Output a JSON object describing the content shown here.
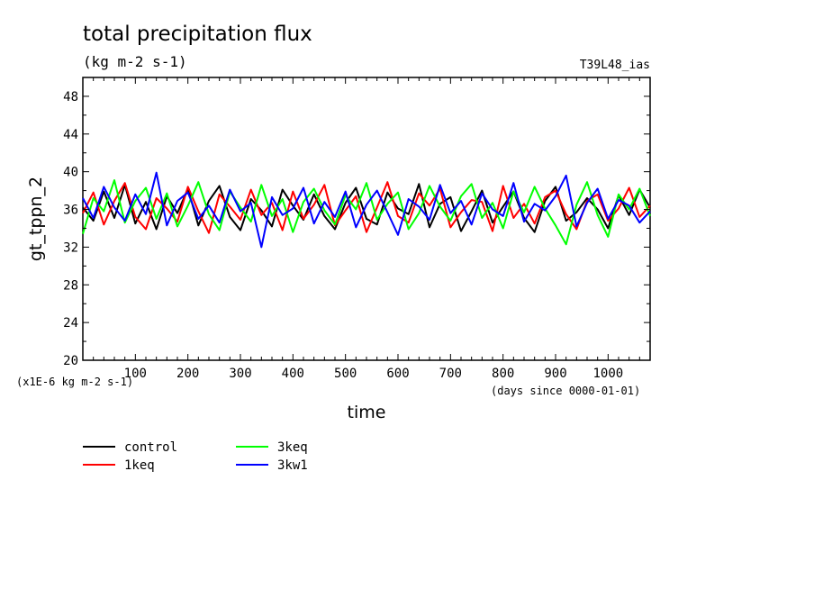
{
  "chart_data": {
    "type": "line",
    "title": "total precipitation flux",
    "units": "(kg m-2 s-1)",
    "model_label": "T39L48_ias",
    "xlabel": "time",
    "x_units_note": "(days since 0000-01-01)",
    "ylabel": "gt_tppn_2",
    "y_scale_note": "(x1E-6 kg m-2 s-1)",
    "xlim": [
      0,
      1080
    ],
    "ylim": [
      20,
      50
    ],
    "xticks": [
      100,
      200,
      300,
      400,
      500,
      600,
      700,
      800,
      900,
      1000
    ],
    "yticks": [
      20,
      24,
      28,
      32,
      36,
      40,
      44,
      48
    ],
    "legend_position": "bottom-left",
    "series": [
      {
        "name": "control",
        "color": "#000000",
        "x": [
          0,
          20,
          40,
          60,
          80,
          100,
          120,
          140,
          160,
          180,
          200,
          220,
          240,
          260,
          280,
          300,
          320,
          340,
          360,
          380,
          400,
          420,
          440,
          460,
          480,
          500,
          520,
          540,
          560,
          580,
          600,
          620,
          640,
          660,
          680,
          700,
          720,
          740,
          760,
          780,
          800,
          820,
          840,
          860,
          880,
          900,
          920,
          940,
          960,
          980,
          1000,
          1020,
          1040,
          1060,
          1080
        ],
        "values": [
          36.2,
          34.8,
          37.9,
          35.1,
          38.6,
          34.5,
          36.8,
          33.9,
          37.4,
          35.6,
          38.2,
          34.3,
          36.9,
          38.5,
          35.2,
          33.8,
          37.1,
          35.9,
          34.2,
          38.1,
          36.4,
          34.9,
          37.6,
          35.3,
          33.9,
          36.7,
          38.3,
          35.0,
          34.4,
          37.8,
          36.1,
          35.5,
          38.7,
          34.1,
          36.6,
          37.3,
          33.7,
          35.8,
          38.0,
          34.6,
          36.3,
          37.9,
          35.1,
          33.6,
          36.9,
          38.4,
          34.8,
          35.7,
          37.2,
          36.0,
          34.0,
          37.5,
          35.4,
          38.1,
          36.2
        ]
      },
      {
        "name": "1keq",
        "color": "#ff0000",
        "x": [
          0,
          20,
          40,
          60,
          80,
          100,
          120,
          140,
          160,
          180,
          200,
          220,
          240,
          260,
          280,
          300,
          320,
          340,
          360,
          380,
          400,
          420,
          440,
          460,
          480,
          500,
          520,
          540,
          560,
          580,
          600,
          620,
          640,
          660,
          680,
          700,
          720,
          740,
          760,
          780,
          800,
          820,
          840,
          860,
          880,
          900,
          920,
          940,
          960,
          980,
          1000,
          1020,
          1040,
          1060,
          1080
        ],
        "values": [
          35.6,
          37.8,
          34.4,
          36.9,
          38.8,
          35.2,
          33.9,
          37.2,
          36.1,
          34.7,
          38.4,
          35.8,
          33.5,
          37.6,
          36.3,
          34.9,
          38.1,
          35.4,
          36.7,
          33.8,
          37.9,
          35.0,
          36.5,
          38.6,
          34.3,
          35.9,
          37.4,
          33.6,
          36.2,
          38.9,
          35.3,
          34.6,
          37.7,
          36.4,
          38.2,
          34.1,
          35.7,
          37.0,
          36.8,
          33.7,
          38.5,
          35.1,
          36.6,
          34.5,
          37.3,
          38.0,
          35.5,
          33.9,
          36.9,
          37.6,
          34.8,
          36.1,
          38.3,
          35.2,
          36.4
        ]
      },
      {
        "name": "3keq",
        "color": "#00ff00",
        "x": [
          0,
          20,
          40,
          60,
          80,
          100,
          120,
          140,
          160,
          180,
          200,
          220,
          240,
          260,
          280,
          300,
          320,
          340,
          360,
          380,
          400,
          420,
          440,
          460,
          480,
          500,
          520,
          540,
          560,
          580,
          600,
          620,
          640,
          660,
          680,
          700,
          720,
          740,
          760,
          780,
          800,
          820,
          840,
          860,
          880,
          900,
          920,
          940,
          960,
          980,
          1000,
          1020,
          1040,
          1060,
          1080
        ],
        "values": [
          33.4,
          37.2,
          35.8,
          39.1,
          34.6,
          36.9,
          38.3,
          35.0,
          37.7,
          34.2,
          36.4,
          38.9,
          35.5,
          33.8,
          37.9,
          36.2,
          34.7,
          38.6,
          35.3,
          37.1,
          33.6,
          36.8,
          38.2,
          35.9,
          34.4,
          37.5,
          36.0,
          38.8,
          34.9,
          36.6,
          37.8,
          33.9,
          35.6,
          38.5,
          36.3,
          34.8,
          37.4,
          38.7,
          35.1,
          36.7,
          34.0,
          37.9,
          35.7,
          38.4,
          36.1,
          34.3,
          32.3,
          36.5,
          38.9,
          35.4,
          33.1,
          37.6,
          36.0,
          38.2,
          35.3
        ]
      },
      {
        "name": "3kw1",
        "color": "#0000ff",
        "x": [
          0,
          20,
          40,
          60,
          80,
          100,
          120,
          140,
          160,
          180,
          200,
          220,
          240,
          260,
          280,
          300,
          320,
          340,
          360,
          380,
          400,
          420,
          440,
          460,
          480,
          500,
          520,
          540,
          560,
          580,
          600,
          620,
          640,
          660,
          680,
          700,
          720,
          740,
          760,
          780,
          800,
          820,
          840,
          860,
          880,
          900,
          920,
          940,
          960,
          980,
          1000,
          1020,
          1040,
          1060,
          1080
        ],
        "values": [
          37.2,
          35.1,
          38.4,
          36.2,
          34.8,
          37.6,
          35.5,
          39.9,
          34.3,
          36.9,
          37.8,
          35.0,
          36.4,
          34.6,
          38.1,
          35.8,
          36.7,
          32.0,
          37.3,
          35.4,
          36.1,
          38.3,
          34.5,
          36.8,
          35.2,
          37.9,
          34.1,
          36.5,
          38.0,
          35.7,
          33.3,
          37.1,
          36.3,
          34.9,
          38.6,
          35.6,
          36.9,
          34.4,
          37.7,
          36.0,
          35.3,
          38.8,
          34.7,
          36.6,
          35.9,
          37.4,
          39.6,
          34.2,
          36.7,
          38.2,
          35.0,
          37.0,
          36.4,
          34.6,
          35.8
        ]
      }
    ]
  }
}
